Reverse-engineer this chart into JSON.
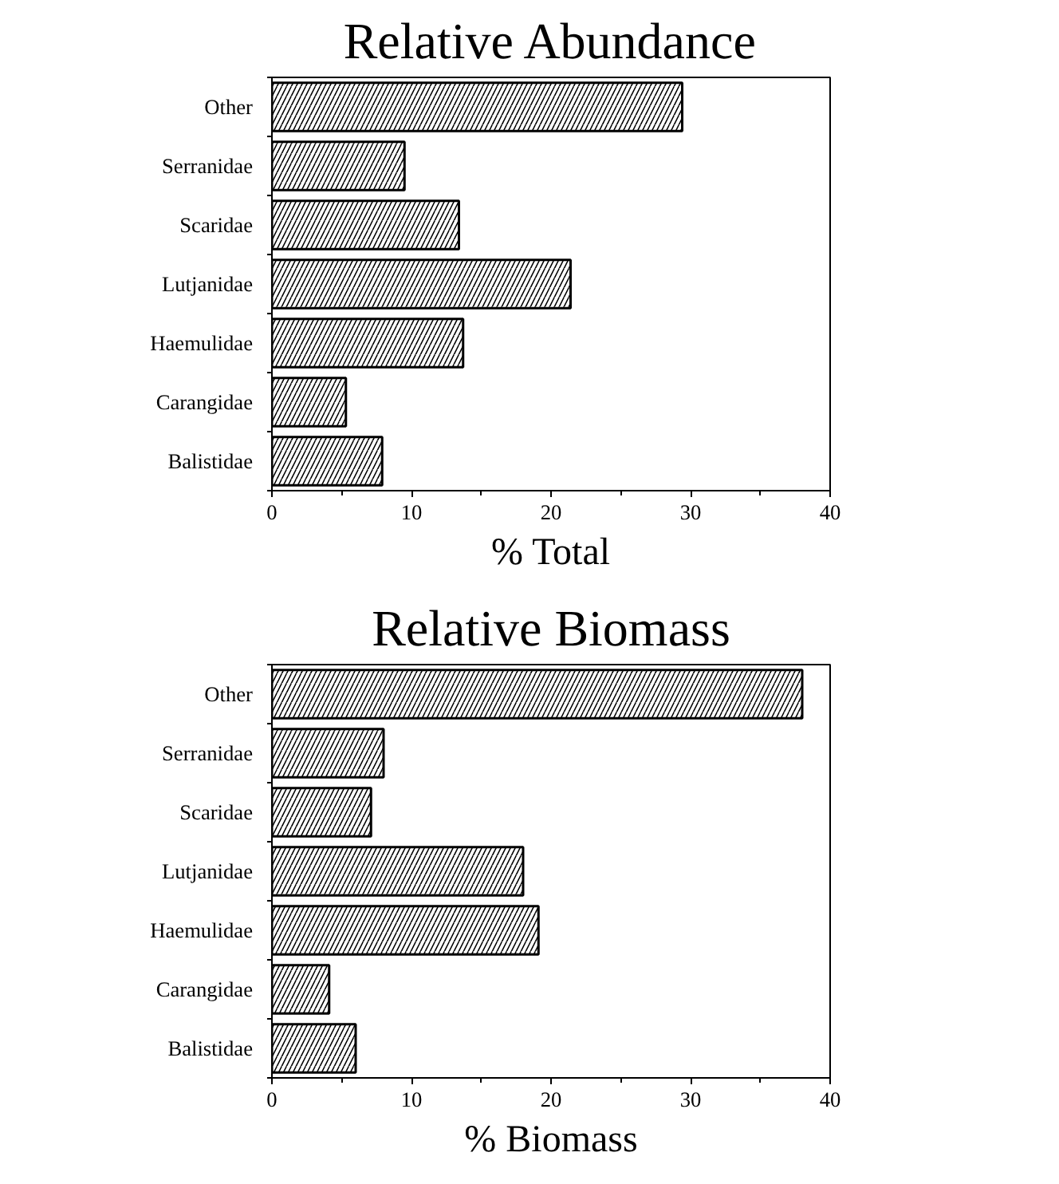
{
  "chart_data": [
    {
      "type": "bar",
      "orientation": "horizontal",
      "title": "Relative Abundance",
      "xlabel": "% Total",
      "categories": [
        "Other",
        "Serranidae",
        "Scaridae",
        "Lutjanidae",
        "Haemulidae",
        "Carangidae",
        "Balistidae"
      ],
      "values": [
        29.4,
        9.5,
        13.4,
        21.4,
        13.7,
        5.3,
        7.9
      ],
      "color": "#000000",
      "xlim": [
        0,
        40
      ],
      "xticks": [
        0,
        10,
        20,
        30,
        40
      ],
      "grid": false
    },
    {
      "type": "bar",
      "orientation": "horizontal",
      "title": "Relative Biomass",
      "xlabel": "% Biomass",
      "categories": [
        "Other",
        "Serranidae",
        "Scaridae",
        "Lutjanidae",
        "Haemulidae",
        "Carangidae",
        "Balistidae"
      ],
      "values": [
        38.0,
        8.0,
        7.1,
        18.0,
        19.1,
        4.1,
        6.0
      ],
      "color": "#000000",
      "xlim": [
        0,
        40
      ],
      "xticks": [
        0,
        10,
        20,
        30,
        40
      ],
      "grid": false
    }
  ]
}
